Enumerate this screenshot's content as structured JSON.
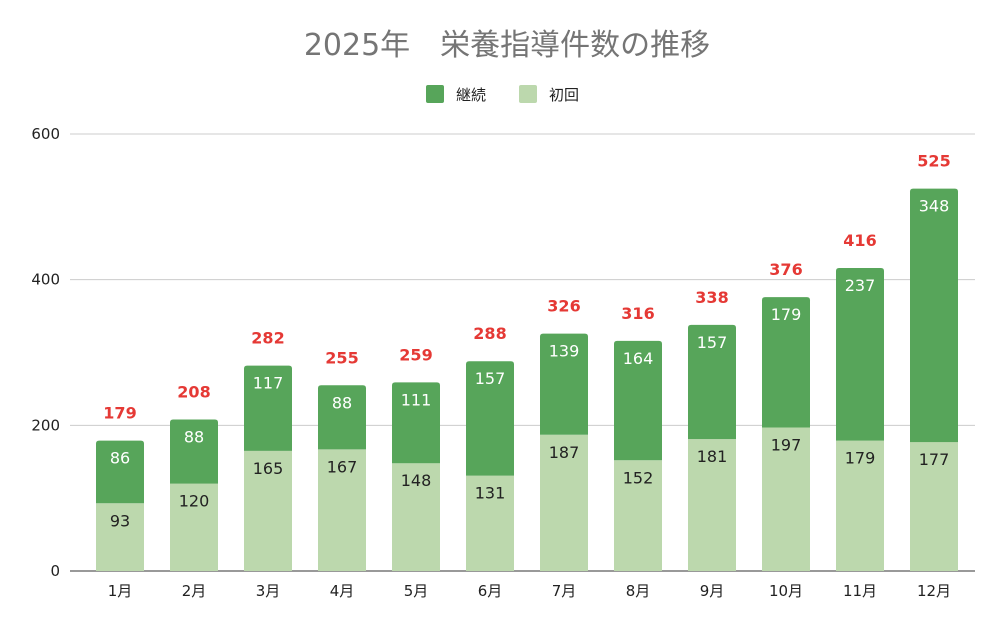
{
  "chart_data": {
    "type": "bar",
    "stacked": true,
    "title": "2025年　栄養指導件数の推移",
    "categories": [
      "1月",
      "2月",
      "3月",
      "4月",
      "5月",
      "6月",
      "7月",
      "8月",
      "9月",
      "10月",
      "11月",
      "12月"
    ],
    "series": [
      {
        "name": "初回",
        "color": "#bcd8ad",
        "label_color": "#222222",
        "values": [
          93,
          120,
          165,
          167,
          148,
          131,
          187,
          152,
          181,
          197,
          179,
          177
        ]
      },
      {
        "name": "継続",
        "color": "#57a55a",
        "label_color": "#ffffff",
        "values": [
          86,
          88,
          117,
          88,
          111,
          157,
          139,
          164,
          157,
          179,
          237,
          348
        ]
      }
    ],
    "totals": [
      179,
      208,
      282,
      255,
      259,
      288,
      326,
      316,
      338,
      376,
      416,
      525
    ],
    "total_label_color": "#e53935",
    "legend_order": [
      "継続",
      "初回"
    ],
    "legend_placement": "top",
    "ylim": [
      0,
      600
    ],
    "yticks": [
      0,
      200,
      400,
      600
    ],
    "grid": true,
    "xlabel": "",
    "ylabel": ""
  }
}
